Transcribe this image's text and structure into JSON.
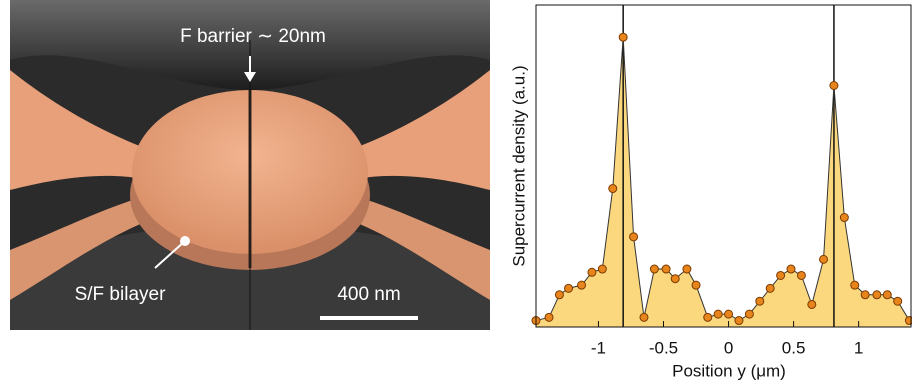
{
  "image_annotations": {
    "barrier": "F barrier ∼ 20nm",
    "bilayer": "S/F bilayer",
    "scale_bar": "400 nm"
  },
  "chart_data": {
    "type": "line",
    "x_label": "Position y (μm)",
    "y_label": "Supercurrent density (a.u.)",
    "x": [
      -1.48,
      -1.38,
      -1.3,
      -1.23,
      -1.13,
      -1.05,
      -0.97,
      -0.89,
      -0.81,
      -0.73,
      -0.65,
      -0.57,
      -0.48,
      -0.41,
      -0.32,
      -0.25,
      -0.16,
      -0.08,
      0,
      0.08,
      0.16,
      0.24,
      0.32,
      0.4,
      0.48,
      0.56,
      0.64,
      0.73,
      0.81,
      0.89,
      0.97,
      1.05,
      1.14,
      1.22,
      1.3,
      1.39
    ],
    "series": [
      {
        "name": "Supercurrent density",
        "color": "#e8841c",
        "fill": "#fbd87e",
        "values": [
          0.02,
          0.03,
          0.1,
          0.12,
          0.13,
          0.17,
          0.18,
          0.43,
          0.9,
          0.28,
          0.03,
          0.18,
          0.18,
          0.15,
          0.18,
          0.13,
          0.03,
          0.04,
          0.04,
          0.02,
          0.04,
          0.08,
          0.12,
          0.16,
          0.18,
          0.16,
          0.07,
          0.21,
          0.75,
          0.34,
          0.13,
          0.1,
          0.1,
          0.1,
          0.08,
          0.02
        ]
      }
    ],
    "vlines": [
      -0.81,
      0.81
    ],
    "xlim": [
      -1.48,
      1.41
    ],
    "ylim": [
      0,
      1
    ],
    "xticks": [
      -1,
      -0.5,
      0,
      0.5,
      1
    ]
  }
}
